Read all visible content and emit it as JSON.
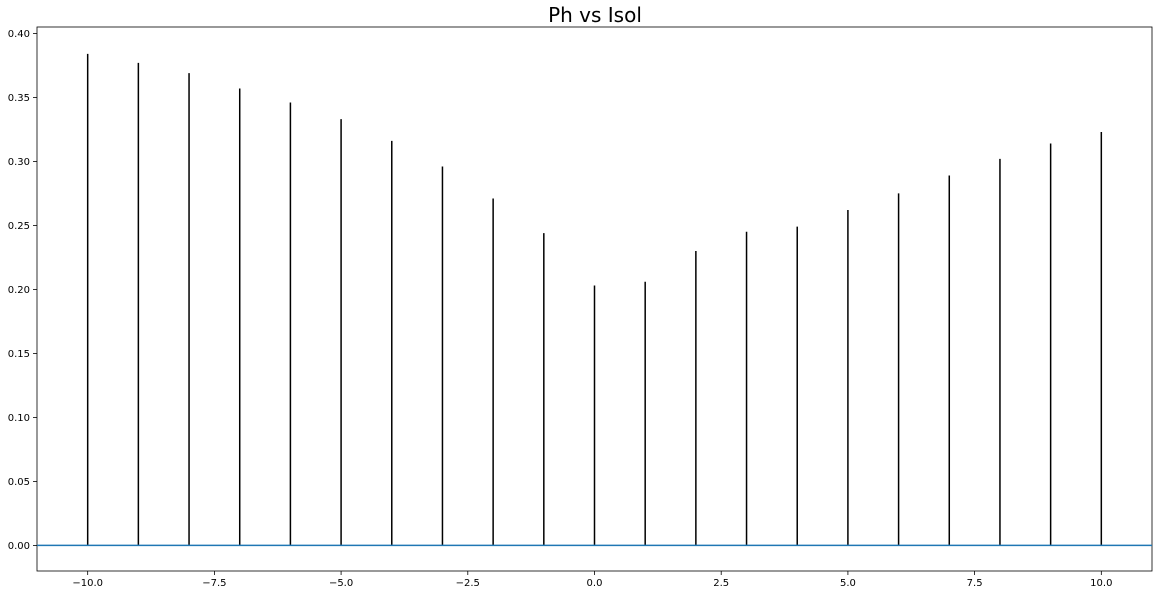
{
  "chart_data": {
    "type": "stem",
    "title": "Ph vs Isol",
    "xlabel": "",
    "ylabel": "",
    "x": [
      -10,
      -9,
      -8,
      -7,
      -6,
      -5,
      -4,
      -3,
      -2,
      -1,
      0,
      1,
      2,
      3,
      4,
      5,
      6,
      7,
      8,
      9,
      10
    ],
    "values": [
      0.384,
      0.377,
      0.369,
      0.357,
      0.346,
      0.333,
      0.316,
      0.296,
      0.271,
      0.244,
      0.203,
      0.206,
      0.23,
      0.245,
      0.249,
      0.262,
      0.275,
      0.289,
      0.302,
      0.314,
      0.323
    ],
    "baseline": 0.0,
    "xlim": [
      -11,
      11
    ],
    "ylim": [
      -0.02,
      0.405
    ],
    "xticks": [
      -10.0,
      -7.5,
      -5.0,
      -2.5,
      0.0,
      2.5,
      5.0,
      7.5,
      10.0
    ],
    "xtick_labels": [
      "−10.0",
      "−7.5",
      "−5.0",
      "−2.5",
      "0.0",
      "2.5",
      "5.0",
      "7.5",
      "10.0"
    ],
    "yticks": [
      0.0,
      0.05,
      0.1,
      0.15,
      0.2,
      0.25,
      0.3,
      0.35,
      0.4
    ],
    "ytick_labels": [
      "0.00",
      "0.05",
      "0.10",
      "0.15",
      "0.20",
      "0.25",
      "0.30",
      "0.35",
      "0.40"
    ],
    "grid": false,
    "colors": {
      "stem": "#000000",
      "baseline": "#1f77b4"
    }
  }
}
